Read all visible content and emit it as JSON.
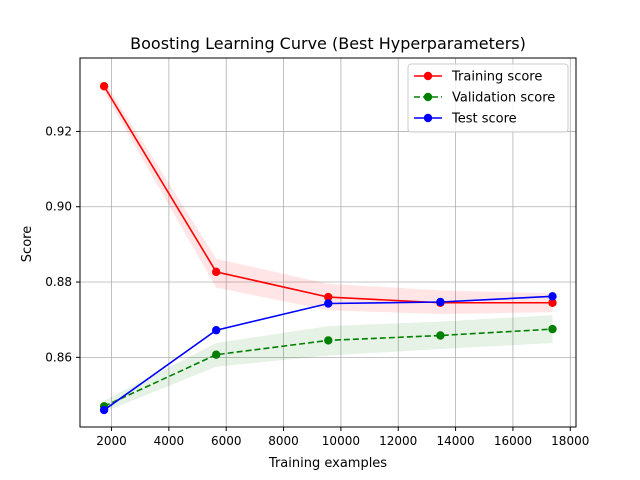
{
  "chart_data": {
    "type": "line",
    "title": "Boosting Learning Curve (Best Hyperparameters)",
    "xlabel": "Training examples",
    "ylabel": "Score",
    "xlim": [
      900,
      18200
    ],
    "ylim": [
      0.8415,
      0.9395
    ],
    "xticks": [
      2000,
      4000,
      6000,
      8000,
      10000,
      12000,
      14000,
      16000,
      18000
    ],
    "xtick_labels": [
      "2000",
      "4000",
      "6000",
      "8000",
      "10000",
      "12000",
      "14000",
      "16000",
      "18000"
    ],
    "yticks": [
      0.86,
      0.88,
      0.9,
      0.92
    ],
    "ytick_labels": [
      "0.86",
      "0.88",
      "0.90",
      "0.92"
    ],
    "grid": true,
    "legend_position": "top-right",
    "x": [
      1740,
      5650,
      9560,
      13470,
      17380
    ],
    "series": [
      {
        "name": "Training score",
        "color": "#ff0000",
        "linestyle": "solid",
        "values": [
          0.932,
          0.8827,
          0.876,
          0.8745,
          0.8745
        ],
        "band_lower": [
          0.9305,
          0.8785,
          0.8725,
          0.8715,
          0.872
        ],
        "band_upper": [
          0.9335,
          0.8862,
          0.8795,
          0.8778,
          0.877
        ],
        "band_color": "#ff0000"
      },
      {
        "name": "Validation score",
        "color": "#008000",
        "linestyle": "dashed",
        "values": [
          0.847,
          0.8607,
          0.8645,
          0.8658,
          0.8675
        ],
        "band_lower": [
          0.8455,
          0.8575,
          0.8605,
          0.8622,
          0.8638
        ],
        "band_upper": [
          0.8485,
          0.8638,
          0.8683,
          0.8695,
          0.8712
        ],
        "band_color": "#008000"
      },
      {
        "name": "Test score",
        "color": "#0000ff",
        "linestyle": "solid",
        "values": [
          0.846,
          0.8672,
          0.8743,
          0.8747,
          0.8762
        ]
      }
    ]
  }
}
